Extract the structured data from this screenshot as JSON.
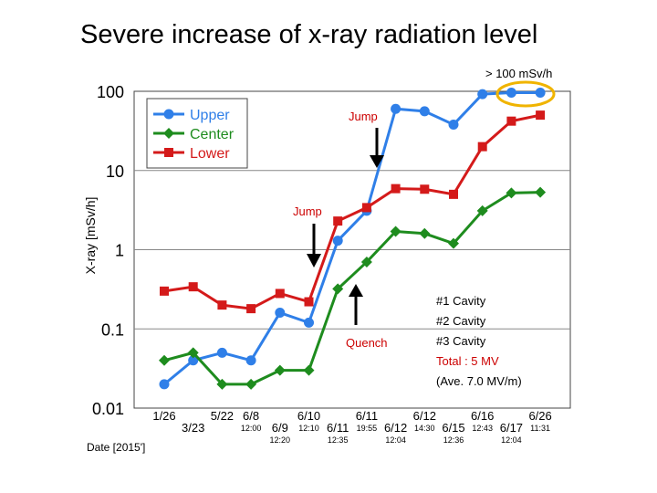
{
  "slide": {
    "title": "Severe increase of x-ray radiation level"
  },
  "chart_data": {
    "type": "line",
    "yscale": "log",
    "ylim": [
      0.01,
      100
    ],
    "ylabel": "X-ray  [mSv/h]",
    "xlabel": "Date [2015']",
    "yticks": [
      "100",
      "10",
      "1",
      "0.1",
      "0.01"
    ],
    "ytick_values": [
      100,
      10,
      1,
      0.1,
      0.01
    ],
    "xticks": [
      {
        "date": "1/26",
        "time": ""
      },
      {
        "date": "3/23",
        "time": ""
      },
      {
        "date": "5/22",
        "time": ""
      },
      {
        "date": "6/8",
        "time": "12:00"
      },
      {
        "date": "6/9",
        "time": "12:20"
      },
      {
        "date": "6/10",
        "time": "12:10"
      },
      {
        "date": "6/11",
        "time": "12:35"
      },
      {
        "date": "6/11",
        "time": "19:55"
      },
      {
        "date": "6/12",
        "time": "12:04"
      },
      {
        "date": "6/12",
        "time": "14:30"
      },
      {
        "date": "6/15",
        "time": "12:36"
      },
      {
        "date": "6/16",
        "time": "12:43"
      },
      {
        "date": "6/17",
        "time": "12:04"
      },
      {
        "date": "6/26",
        "time": "11:31"
      }
    ],
    "series": [
      {
        "name": "Upper",
        "color": "#2f7fe8",
        "marker": "circle",
        "values": [
          0.02,
          0.04,
          0.05,
          0.04,
          0.16,
          0.12,
          1.3,
          3.1,
          60,
          56,
          38,
          92,
          96,
          96
        ]
      },
      {
        "name": "Center",
        "color": "#1e8c1e",
        "marker": "diamond",
        "values": [
          0.04,
          0.05,
          0.02,
          0.02,
          0.03,
          0.03,
          0.32,
          0.7,
          1.7,
          1.6,
          1.2,
          3.1,
          5.2,
          5.3
        ]
      },
      {
        "name": "Lower",
        "color": "#d41a1a",
        "marker": "square",
        "values": [
          0.3,
          0.34,
          0.2,
          0.18,
          0.28,
          0.22,
          2.3,
          3.4,
          5.9,
          5.8,
          5.0,
          20,
          42,
          50
        ]
      }
    ],
    "annotations": {
      "jump_upper": "Jump",
      "jump_lower": "Jump",
      "quench": "Quench",
      "limit": "> 100 mSv/h",
      "cavities": [
        "#1 Cavity",
        "#2 Cavity",
        "#3 Cavity"
      ],
      "total": "Total : 5 MV",
      "average": "(Ave. 7.0 MV/m)"
    }
  }
}
